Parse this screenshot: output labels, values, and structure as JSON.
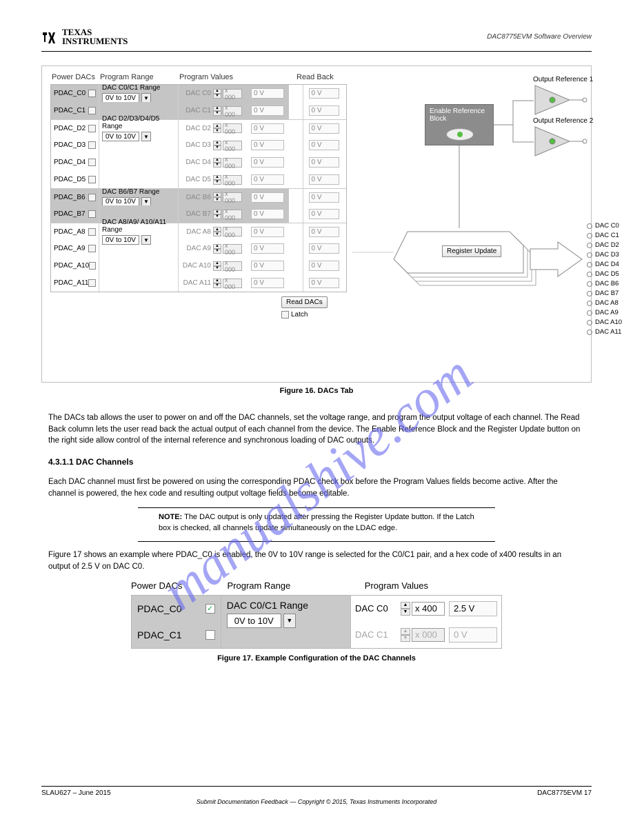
{
  "header": {
    "brand1": "TEXAS",
    "brand2": "INSTRUMENTS",
    "right": "DAC8775EVM Software Overview"
  },
  "panel": {
    "headers": {
      "power": "Power DACs",
      "range": "Program Range",
      "values": "Program Values",
      "read": "Read Back"
    },
    "enableBlock": "Enable Reference Block",
    "outref1": "Output Reference 1",
    "outref2": "Output Reference 2",
    "regUpdate": "Register Update",
    "readDacsBtn": "Read DACs",
    "latch": "Latch",
    "defaultHex": "000",
    "defaultVolt": "0 V",
    "defaultRead": "0 V",
    "groups": [
      {
        "shaded": true,
        "rangeLabel": "DAC C0/C1 Range",
        "rangeValue": "0V to 10V",
        "rows": [
          {
            "pdac": "PDAC_C0",
            "dac": "DAC C0",
            "out": "DAC C0"
          },
          {
            "pdac": "PDAC_C1",
            "dac": "DAC C1",
            "out": "DAC C1"
          }
        ]
      },
      {
        "shaded": false,
        "rangeLabel": "DAC D2/D3/D4/D5 Range",
        "rangeValue": "0V to 10V",
        "rows": [
          {
            "pdac": "PDAC_D2",
            "dac": "DAC D2",
            "out": "DAC D2"
          },
          {
            "pdac": "PDAC_D3",
            "dac": "DAC D3",
            "out": "DAC D3"
          },
          {
            "pdac": "PDAC_D4",
            "dac": "DAC D4",
            "out": "DAC D4"
          },
          {
            "pdac": "PDAC_D5",
            "dac": "DAC D5",
            "out": "DAC D5"
          }
        ]
      },
      {
        "shaded": true,
        "rangeLabel": "DAC B6/B7 Range",
        "rangeValue": "0V to 10V",
        "rows": [
          {
            "pdac": "PDAC_B6",
            "dac": "DAC B6",
            "out": "DAC B6"
          },
          {
            "pdac": "PDAC_B7",
            "dac": "DAC B7",
            "out": "DAC B7"
          }
        ]
      },
      {
        "shaded": false,
        "rangeLabel": "DAC A8/A9/ A10/A11 Range",
        "rangeValue": "0V to 10V",
        "rows": [
          {
            "pdac": "PDAC_A8",
            "dac": "DAC A8",
            "out": "DAC A8"
          },
          {
            "pdac": "PDAC_A9",
            "dac": "DAC A9",
            "out": "DAC A9"
          },
          {
            "pdac": "PDAC_A10",
            "dac": "DAC A10",
            "out": "DAC A10"
          },
          {
            "pdac": "PDAC_A11",
            "dac": "DAC A11",
            "out": "DAC A11"
          }
        ]
      }
    ],
    "colors": {
      "shadedBg": "#c5c5c5",
      "border": "#b5b5b5",
      "disabledText": "#a0a0a0",
      "ledGreen": "#55c040",
      "wire": "#888888"
    }
  },
  "captions": {
    "fig16": "Figure 16. DACs Tab",
    "fig17": "Figure 17. Example Configuration of the DAC Channels"
  },
  "body": {
    "p1": "The DACs tab allows the user to power on and off the DAC channels, set the voltage range, and program the output voltage of each channel. The Read Back column lets the user read back the actual output of each channel from the device. The Enable Reference Block and the Register Update button on the right side allow control of the internal reference and synchronous loading of DAC outputs.",
    "sectionHeading": "4.3.1.1   DAC Channels",
    "p2": "Each DAC channel must first be powered on using the corresponding PDAC check box before the Program Values fields become active. After the channel is powered, the hex code and resulting output voltage fields become editable.",
    "noteLabel": "NOTE:",
    "noteText": " The DAC output is only updated after pressing the Register Update button. If the Latch box is checked, all channels update simultaneously on the LDAC edge.",
    "p3": "Figure 17 shows an example where PDAC_C0 is enabled, the 0V to 10V range is selected for the C0/C1 pair, and a hex code of x400 results in an output of 2.5 V on DAC C0."
  },
  "example": {
    "headers": {
      "power": "Power DACs",
      "range": "Program Range",
      "values": "Program Values"
    },
    "rangeLabel": "DAC C0/C1 Range",
    "rangeValue": "0V to 10V",
    "rows": [
      {
        "name": "PDAC_C0",
        "dac": "DAC C0",
        "hex": "x 400",
        "volt": "2.5 V",
        "checked": true
      },
      {
        "name": "PDAC_C1",
        "dac": "DAC C1",
        "hex": "x 000",
        "volt": "0 V",
        "checked": false
      }
    ]
  },
  "watermark": "manualshive.com",
  "footer": {
    "left": "SLAU627 – June 2015",
    "right": "DAC8775EVM   17",
    "center": "Submit Documentation Feedback — Copyright © 2015, Texas Instruments Incorporated"
  }
}
